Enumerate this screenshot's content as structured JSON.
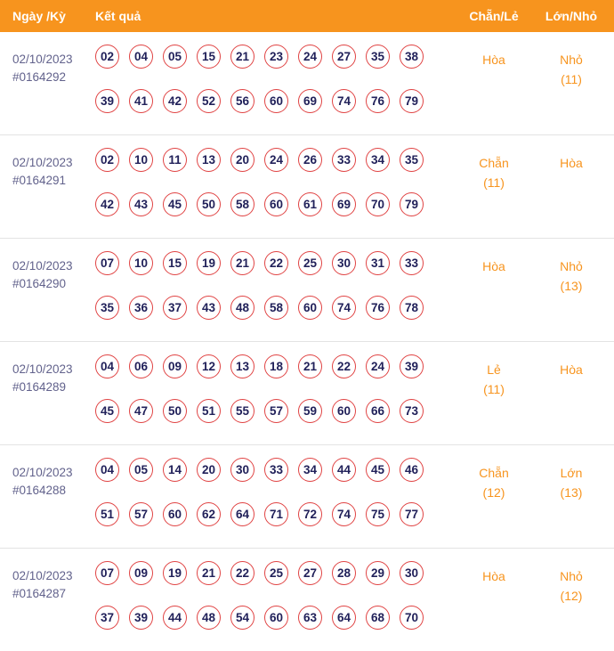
{
  "header": {
    "columns": [
      "Ngày /Kỳ",
      "Kết quả",
      "Chẵn/Lẻ",
      "Lớn/Nhỏ"
    ]
  },
  "rows": [
    {
      "date": "02/10/2023",
      "id": "#0164292",
      "numbers": [
        [
          "02",
          "04",
          "05",
          "15",
          "21",
          "23",
          "24",
          "27",
          "35",
          "38"
        ],
        [
          "39",
          "41",
          "42",
          "52",
          "56",
          "60",
          "69",
          "74",
          "76",
          "79"
        ]
      ],
      "chan_le_label": "Hòa",
      "chan_le_count": "",
      "lon_nho_label": "Nhỏ",
      "lon_nho_count": "(11)"
    },
    {
      "date": "02/10/2023",
      "id": "#0164291",
      "numbers": [
        [
          "02",
          "10",
          "11",
          "13",
          "20",
          "24",
          "26",
          "33",
          "34",
          "35"
        ],
        [
          "42",
          "43",
          "45",
          "50",
          "58",
          "60",
          "61",
          "69",
          "70",
          "79"
        ]
      ],
      "chan_le_label": "Chẵn",
      "chan_le_count": "(11)",
      "lon_nho_label": "Hòa",
      "lon_nho_count": ""
    },
    {
      "date": "02/10/2023",
      "id": "#0164290",
      "numbers": [
        [
          "07",
          "10",
          "15",
          "19",
          "21",
          "22",
          "25",
          "30",
          "31",
          "33"
        ],
        [
          "35",
          "36",
          "37",
          "43",
          "48",
          "58",
          "60",
          "74",
          "76",
          "78"
        ]
      ],
      "chan_le_label": "Hòa",
      "chan_le_count": "",
      "lon_nho_label": "Nhỏ",
      "lon_nho_count": "(13)"
    },
    {
      "date": "02/10/2023",
      "id": "#0164289",
      "numbers": [
        [
          "04",
          "06",
          "09",
          "12",
          "13",
          "18",
          "21",
          "22",
          "24",
          "39"
        ],
        [
          "45",
          "47",
          "50",
          "51",
          "55",
          "57",
          "59",
          "60",
          "66",
          "73"
        ]
      ],
      "chan_le_label": "Lẻ",
      "chan_le_count": "(11)",
      "lon_nho_label": "Hòa",
      "lon_nho_count": ""
    },
    {
      "date": "02/10/2023",
      "id": "#0164288",
      "numbers": [
        [
          "04",
          "05",
          "14",
          "20",
          "30",
          "33",
          "34",
          "44",
          "45",
          "46"
        ],
        [
          "51",
          "57",
          "60",
          "62",
          "64",
          "71",
          "72",
          "74",
          "75",
          "77"
        ]
      ],
      "chan_le_label": "Chẵn",
      "chan_le_count": "(12)",
      "lon_nho_label": "Lớn",
      "lon_nho_count": "(13)"
    },
    {
      "date": "02/10/2023",
      "id": "#0164287",
      "numbers": [
        [
          "07",
          "09",
          "19",
          "21",
          "22",
          "25",
          "27",
          "28",
          "29",
          "30"
        ],
        [
          "37",
          "39",
          "44",
          "48",
          "54",
          "60",
          "63",
          "64",
          "68",
          "70"
        ]
      ],
      "chan_le_label": "Hòa",
      "chan_le_count": "",
      "lon_nho_label": "Nhỏ",
      "lon_nho_count": "(12)"
    }
  ],
  "colors": {
    "header_bg": "#f7941e",
    "accent_orange": "#f7941e",
    "ball_border": "#e04343",
    "ball_text": "#21215a",
    "date_text": "#62628c",
    "divider": "#e3e3e3"
  }
}
